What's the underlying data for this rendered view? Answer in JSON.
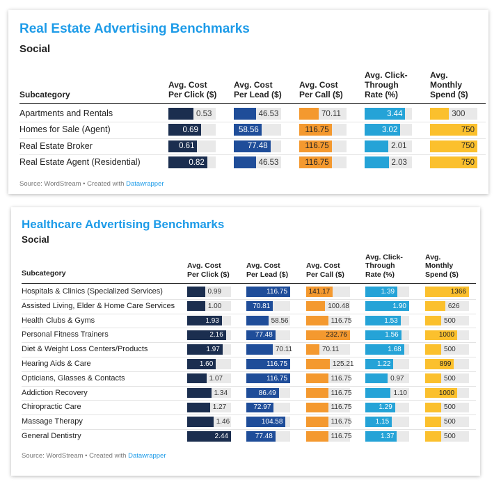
{
  "charts": [
    {
      "title": "Real Estate Advertising Benchmarks",
      "subtitle": "Social",
      "subcategory_header": "Subcategory",
      "columns": [
        {
          "label": "Avg. Cost\nPer Click ($)",
          "color": "#1b2e4f",
          "light_text": true
        },
        {
          "label": "Avg. Cost\nPer Lead ($)",
          "color": "#1f4d99",
          "light_text": true
        },
        {
          "label": "Avg. Cost\nPer Call ($)",
          "color": "#f4992f",
          "light_text": false
        },
        {
          "label": "Avg. Click-\nThrough\nRate (%)",
          "color": "#25a3d7",
          "light_text": true
        },
        {
          "label": "Avg.\nMonthly\nSpend ($)",
          "color": "#fbc02d",
          "light_text": false
        }
      ],
      "rows": [
        {
          "label": "Apartments and Rentals",
          "display": [
            "0.53",
            "46.53",
            "70.11",
            "3.44",
            "300"
          ]
        },
        {
          "label": "Homes for Sale (Agent)",
          "display": [
            "0.69",
            "58.56",
            "116.75",
            "3.02",
            "750"
          ]
        },
        {
          "label": "Real Estate Broker",
          "display": [
            "0.61",
            "77.48",
            "116.75",
            "2.01",
            "750"
          ]
        },
        {
          "label": "Real Estate Agent (Residential)",
          "display": [
            "0.82",
            "46.53",
            "116.75",
            "2.03",
            "750"
          ]
        }
      ],
      "source_prefix": "Source: WordStream • Created with ",
      "source_link": "Datawrapper"
    },
    {
      "title": "Healthcare Advertising Benchmarks",
      "subtitle": "Social",
      "subcategory_header": "Subcategory",
      "columns": [
        {
          "label": "Avg. Cost\nPer Click ($)",
          "color": "#1b2e4f",
          "light_text": true
        },
        {
          "label": "Avg. Cost\nPer Lead ($)",
          "color": "#1f4d99",
          "light_text": true
        },
        {
          "label": "Avg. Cost\nPer Call ($)",
          "color": "#f4992f",
          "light_text": false
        },
        {
          "label": "Avg. Click-\nThrough\nRate (%)",
          "color": "#25a3d7",
          "light_text": true
        },
        {
          "label": "Avg.\nMonthly\nSpend ($)",
          "color": "#fbc02d",
          "light_text": false
        }
      ],
      "rows": [
        {
          "label": "Hospitals & Clinics (Specialized Services)",
          "display": [
            "0.99",
            "116.75",
            "141.17",
            "1.39",
            "1366"
          ]
        },
        {
          "label": "Assisted Living, Elder & Home Care Services",
          "display": [
            "1.00",
            "70.81",
            "100.48",
            "1.90",
            "626"
          ]
        },
        {
          "label": "Health Clubs & Gyms",
          "display": [
            "1.93",
            "58.56",
            "116.75",
            "1.53",
            "500"
          ]
        },
        {
          "label": "Personal Fitness Trainers",
          "display": [
            "2.16",
            "77.48",
            "232.76",
            "1.56",
            "1000"
          ]
        },
        {
          "label": "Diet & Weight Loss Centers/Products",
          "display": [
            "1.97",
            "70.11",
            "70.11",
            "1.68",
            "500"
          ]
        },
        {
          "label": "Hearing Aids & Care",
          "display": [
            "1.60",
            "116.75",
            "125.21",
            "1.22",
            "899"
          ]
        },
        {
          "label": "Opticians, Glasses & Contacts",
          "display": [
            "1.07",
            "116.75",
            "116.75",
            "0.97",
            "500"
          ]
        },
        {
          "label": "Addiction Recovery",
          "display": [
            "1.34",
            "86.49",
            "116.75",
            "1.10",
            "1000"
          ]
        },
        {
          "label": "Chiropractic Care",
          "display": [
            "1.27",
            "72.97",
            "116.75",
            "1.29",
            "500"
          ]
        },
        {
          "label": "Massage Therapy",
          "display": [
            "1.46",
            "104.58",
            "116.75",
            "1.15",
            "500"
          ]
        },
        {
          "label": "General Dentistry",
          "display": [
            "2.44",
            "77.48",
            "116.75",
            "1.37",
            "500"
          ]
        }
      ],
      "source_prefix": "Source: WordStream • Created with ",
      "source_link": "Datawrapper"
    }
  ],
  "chart_data": [
    {
      "type": "table",
      "title": "Real Estate Advertising Benchmarks",
      "subtitle": "Social",
      "categories": [
        "Apartments and Rentals",
        "Homes for Sale (Agent)",
        "Real Estate Broker",
        "Real Estate Agent (Residential)"
      ],
      "series": [
        {
          "name": "Avg. Cost Per Click ($)",
          "values": [
            0.53,
            0.69,
            0.61,
            0.82
          ],
          "max": 1.0
        },
        {
          "name": "Avg. Cost Per Lead ($)",
          "values": [
            46.53,
            58.56,
            77.48,
            46.53
          ],
          "max": 100
        },
        {
          "name": "Avg. Cost Per Call ($)",
          "values": [
            70.11,
            116.75,
            116.75,
            116.75
          ],
          "max": 170
        },
        {
          "name": "Avg. Click-Through Rate (%)",
          "values": [
            3.44,
            3.02,
            2.01,
            2.03
          ],
          "max": 4.0
        },
        {
          "name": "Avg. Monthly Spend ($)",
          "values": [
            300,
            750,
            750,
            750
          ],
          "max": 750
        }
      ]
    },
    {
      "type": "table",
      "title": "Healthcare Advertising Benchmarks",
      "subtitle": "Social",
      "categories": [
        "Hospitals & Clinics (Specialized Services)",
        "Assisted Living, Elder & Home Care Services",
        "Health Clubs & Gyms",
        "Personal Fitness Trainers",
        "Diet & Weight Loss Centers/Products",
        "Hearing Aids & Care",
        "Opticians, Glasses & Contacts",
        "Addiction Recovery",
        "Chiropractic Care",
        "Massage Therapy",
        "General Dentistry"
      ],
      "series": [
        {
          "name": "Avg. Cost Per Click ($)",
          "values": [
            0.99,
            1.0,
            1.93,
            2.16,
            1.97,
            1.6,
            1.07,
            1.34,
            1.27,
            1.46,
            2.44
          ],
          "max": 2.44
        },
        {
          "name": "Avg. Cost Per Lead ($)",
          "values": [
            116.75,
            70.81,
            58.56,
            77.48,
            70.11,
            116.75,
            116.75,
            86.49,
            72.97,
            104.58,
            77.48
          ],
          "max": 116.75
        },
        {
          "name": "Avg. Cost Per Call ($)",
          "values": [
            141.17,
            100.48,
            116.75,
            232.76,
            70.11,
            125.21,
            116.75,
            116.75,
            116.75,
            116.75,
            116.75
          ],
          "max": 232.76
        },
        {
          "name": "Avg. Click-Through Rate (%)",
          "values": [
            1.39,
            1.9,
            1.53,
            1.56,
            1.68,
            1.22,
            0.97,
            1.1,
            1.29,
            1.15,
            1.37
          ],
          "max": 1.9
        },
        {
          "name": "Avg. Monthly Spend ($)",
          "values": [
            1366,
            626,
            500,
            1000,
            500,
            899,
            500,
            1000,
            500,
            500,
            500
          ],
          "max": 1366
        }
      ]
    }
  ]
}
